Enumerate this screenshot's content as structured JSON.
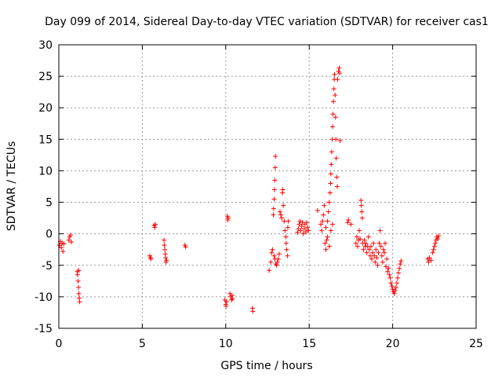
{
  "chart_data": {
    "type": "scatter",
    "title": "Day 099 of 2014, Sidereal Day-to-day VTEC variation (SDTVAR) for receiver cas1",
    "xlabel": "GPS time / hours",
    "ylabel": "SDTVAR / TECUs",
    "xlim": [
      0,
      25
    ],
    "ylim": [
      -15,
      30
    ],
    "xticks": [
      0,
      5,
      10,
      15,
      20,
      25
    ],
    "yticks": [
      -15,
      -10,
      -5,
      0,
      5,
      10,
      15,
      20,
      25,
      30
    ],
    "grid": true,
    "marker": "+",
    "series": [
      {
        "name": "SDTVAR",
        "color": "#ff0000",
        "points": [
          [
            0.05,
            -1.8
          ],
          [
            0.1,
            -1.2
          ],
          [
            0.15,
            -2.2
          ],
          [
            0.2,
            -1.5
          ],
          [
            0.25,
            -2.8
          ],
          [
            0.3,
            -1.6
          ],
          [
            0.6,
            -1.0
          ],
          [
            0.65,
            -0.5
          ],
          [
            0.7,
            -0.2
          ],
          [
            0.75,
            -1.3
          ],
          [
            1.1,
            -6.0
          ],
          [
            1.12,
            -6.5
          ],
          [
            1.15,
            -7.5
          ],
          [
            1.18,
            -8.5
          ],
          [
            1.2,
            -9.5
          ],
          [
            1.22,
            -10.2
          ],
          [
            1.25,
            -10.8
          ],
          [
            1.2,
            -5.8
          ],
          [
            5.45,
            -3.5
          ],
          [
            5.5,
            -3.8
          ],
          [
            5.52,
            -4.0
          ],
          [
            5.7,
            1.3
          ],
          [
            5.75,
            1.0
          ],
          [
            5.78,
            1.5
          ],
          [
            6.3,
            -1.0
          ],
          [
            6.32,
            -1.8
          ],
          [
            6.35,
            -2.5
          ],
          [
            6.38,
            -3.2
          ],
          [
            6.4,
            -3.8
          ],
          [
            6.42,
            -4.5
          ],
          [
            6.45,
            -4.2
          ],
          [
            7.55,
            -1.8
          ],
          [
            7.6,
            -2.1
          ],
          [
            9.95,
            -10.5
          ],
          [
            10.0,
            -11.2
          ],
          [
            10.02,
            -11.5
          ],
          [
            10.05,
            -10.8
          ],
          [
            10.1,
            2.8
          ],
          [
            10.12,
            2.2
          ],
          [
            10.15,
            2.5
          ],
          [
            10.25,
            -9.5
          ],
          [
            10.3,
            -10.0
          ],
          [
            10.35,
            -10.5
          ],
          [
            10.38,
            -9.8
          ],
          [
            10.4,
            -10.3
          ],
          [
            11.6,
            -11.8
          ],
          [
            11.62,
            -12.3
          ],
          [
            12.6,
            -5.8
          ],
          [
            12.7,
            -4.5
          ],
          [
            12.75,
            -3.0
          ],
          [
            12.8,
            -2.5
          ],
          [
            12.85,
            3.0
          ],
          [
            12.87,
            4.0
          ],
          [
            12.9,
            5.5
          ],
          [
            12.92,
            7.0
          ],
          [
            12.94,
            8.5
          ],
          [
            12.96,
            10.5
          ],
          [
            12.98,
            12.3
          ],
          [
            12.9,
            -3.5
          ],
          [
            12.95,
            -4.0
          ],
          [
            13.0,
            -4.8
          ],
          [
            13.05,
            -5.0
          ],
          [
            13.1,
            -4.5
          ],
          [
            13.15,
            -4.0
          ],
          [
            13.2,
            -3.2
          ],
          [
            13.25,
            3.5
          ],
          [
            13.3,
            3.0
          ],
          [
            13.35,
            2.5
          ],
          [
            13.4,
            6.5
          ],
          [
            13.42,
            7.0
          ],
          [
            13.45,
            4.5
          ],
          [
            13.5,
            2.0
          ],
          [
            13.55,
            0.5
          ],
          [
            13.6,
            -0.5
          ],
          [
            13.62,
            -1.5
          ],
          [
            13.65,
            -2.5
          ],
          [
            13.7,
            -3.5
          ],
          [
            13.72,
            1.0
          ],
          [
            13.75,
            2.0
          ],
          [
            14.3,
            0.2
          ],
          [
            14.35,
            0.8
          ],
          [
            14.4,
            1.5
          ],
          [
            14.45,
            2.0
          ],
          [
            14.5,
            0.5
          ],
          [
            14.55,
            1.2
          ],
          [
            14.6,
            1.8
          ],
          [
            14.65,
            0.0
          ],
          [
            14.7,
            0.8
          ],
          [
            14.75,
            1.5
          ],
          [
            14.8,
            0.3
          ],
          [
            14.85,
            1.8
          ],
          [
            14.9,
            1.0
          ],
          [
            14.95,
            0.5
          ],
          [
            15.5,
            3.7
          ],
          [
            15.7,
            1.5
          ],
          [
            15.75,
            0.5
          ],
          [
            15.8,
            2.0
          ],
          [
            15.85,
            3.0
          ],
          [
            15.9,
            4.5
          ],
          [
            15.95,
            -1.5
          ],
          [
            16.0,
            -2.5
          ],
          [
            16.05,
            -1.0
          ],
          [
            16.1,
            2.0
          ],
          [
            16.15,
            3.5
          ],
          [
            16.2,
            5.0
          ],
          [
            16.25,
            6.5
          ],
          [
            16.28,
            8.0
          ],
          [
            16.3,
            9.5
          ],
          [
            16.32,
            11.0
          ],
          [
            16.35,
            13.0
          ],
          [
            16.38,
            15.0
          ],
          [
            16.4,
            17.0
          ],
          [
            16.42,
            19.0
          ],
          [
            16.45,
            21.0
          ],
          [
            16.48,
            23.0
          ],
          [
            16.5,
            24.5
          ],
          [
            16.52,
            25.3
          ],
          [
            16.55,
            22.0
          ],
          [
            16.58,
            18.5
          ],
          [
            16.6,
            15.0
          ],
          [
            16.62,
            12.0
          ],
          [
            16.65,
            9.0
          ],
          [
            16.68,
            7.5
          ],
          [
            16.7,
            24.5
          ],
          [
            16.75,
            25.8
          ],
          [
            16.8,
            26.3
          ],
          [
            16.82,
            25.5
          ],
          [
            16.85,
            14.8
          ],
          [
            16.0,
            1.0
          ],
          [
            16.1,
            -0.5
          ],
          [
            16.2,
            -2.0
          ],
          [
            16.3,
            0.5
          ],
          [
            16.4,
            1.5
          ],
          [
            17.3,
            1.8
          ],
          [
            17.35,
            2.2
          ],
          [
            17.5,
            1.5
          ],
          [
            17.8,
            -1.5
          ],
          [
            17.85,
            -0.5
          ],
          [
            17.9,
            -2.0
          ],
          [
            17.95,
            -1.0
          ],
          [
            18.0,
            0.5
          ],
          [
            18.05,
            -0.8
          ],
          [
            18.1,
            5.3
          ],
          [
            18.12,
            4.5
          ],
          [
            18.15,
            3.5
          ],
          [
            18.18,
            2.5
          ],
          [
            18.2,
            -1.5
          ],
          [
            18.25,
            -2.5
          ],
          [
            18.3,
            -1.0
          ],
          [
            18.35,
            -2.0
          ],
          [
            18.4,
            -1.5
          ],
          [
            18.45,
            -3.0
          ],
          [
            18.5,
            -2.0
          ],
          [
            18.55,
            -0.5
          ],
          [
            18.6,
            -2.5
          ],
          [
            18.65,
            -3.5
          ],
          [
            18.7,
            -2.0
          ],
          [
            18.75,
            -4.0
          ],
          [
            18.8,
            -3.0
          ],
          [
            18.85,
            -1.5
          ],
          [
            18.9,
            -3.5
          ],
          [
            18.95,
            -4.5
          ],
          [
            19.0,
            -2.5
          ],
          [
            19.05,
            -3.8
          ],
          [
            19.1,
            -5.0
          ],
          [
            19.15,
            -3.0
          ],
          [
            19.2,
            -1.5
          ],
          [
            19.25,
            0.5
          ],
          [
            19.3,
            -2.0
          ],
          [
            19.35,
            -3.5
          ],
          [
            19.4,
            -4.5
          ],
          [
            19.45,
            -2.5
          ],
          [
            19.5,
            -3.0
          ],
          [
            19.55,
            -1.5
          ],
          [
            19.6,
            -5.2
          ],
          [
            19.65,
            -4.0
          ],
          [
            19.7,
            -6.0
          ],
          [
            19.75,
            -5.5
          ],
          [
            19.8,
            -6.5
          ],
          [
            19.85,
            -7.0
          ],
          [
            19.9,
            -7.8
          ],
          [
            19.95,
            -8.3
          ],
          [
            20.0,
            -8.8
          ],
          [
            20.05,
            -9.2
          ],
          [
            20.1,
            -9.5
          ],
          [
            20.15,
            -9.0
          ],
          [
            20.2,
            -8.5
          ],
          [
            20.25,
            -7.8
          ],
          [
            20.3,
            -7.0
          ],
          [
            20.35,
            -6.2
          ],
          [
            20.4,
            -5.5
          ],
          [
            20.45,
            -4.8
          ],
          [
            20.5,
            -4.3
          ],
          [
            22.1,
            -4.0
          ],
          [
            22.15,
            -4.5
          ],
          [
            22.2,
            -3.8
          ],
          [
            22.3,
            -4.2
          ],
          [
            22.4,
            -3.0
          ],
          [
            22.45,
            -2.5
          ],
          [
            22.5,
            -2.0
          ],
          [
            22.55,
            -1.5
          ],
          [
            22.6,
            -1.0
          ],
          [
            22.65,
            -0.5
          ],
          [
            22.7,
            -0.8
          ],
          [
            22.75,
            -0.3
          ]
        ]
      }
    ]
  }
}
